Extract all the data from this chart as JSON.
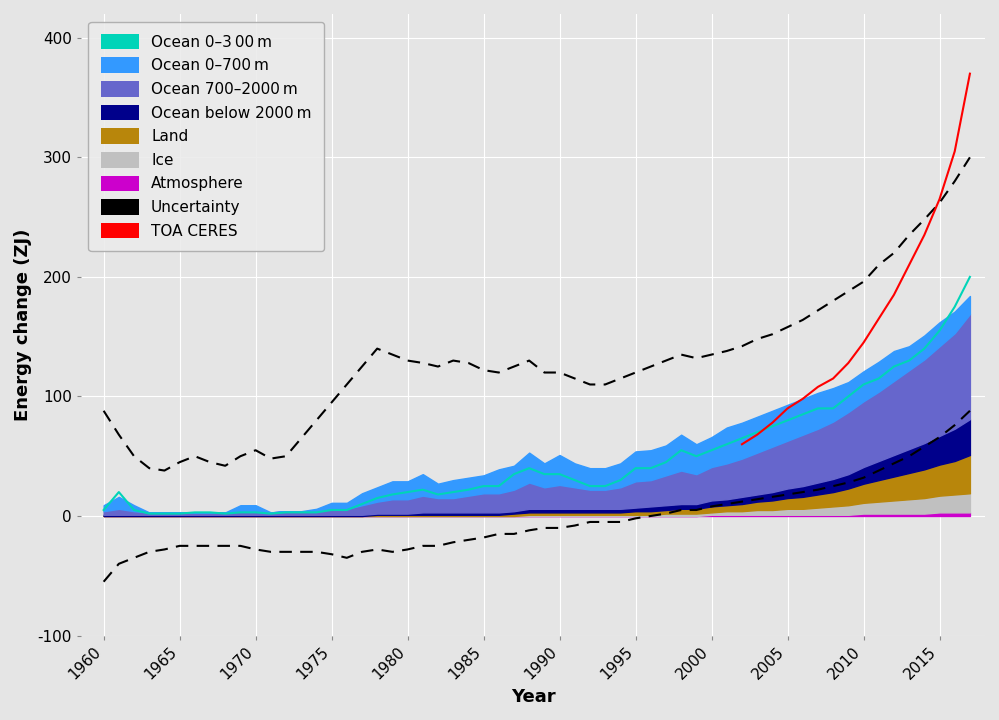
{
  "years": [
    1960,
    1961,
    1962,
    1963,
    1964,
    1965,
    1966,
    1967,
    1968,
    1969,
    1970,
    1971,
    1972,
    1973,
    1974,
    1975,
    1976,
    1977,
    1978,
    1979,
    1980,
    1981,
    1982,
    1983,
    1984,
    1985,
    1986,
    1987,
    1988,
    1989,
    1990,
    1991,
    1992,
    1993,
    1994,
    1995,
    1996,
    1997,
    1998,
    1999,
    2000,
    2001,
    2002,
    2003,
    2004,
    2005,
    2006,
    2007,
    2008,
    2009,
    2010,
    2011,
    2012,
    2013,
    2014,
    2015,
    2016,
    2017
  ],
  "ocean_0_300_line": [
    5,
    20,
    5,
    2,
    2,
    2,
    3,
    3,
    2,
    3,
    3,
    2,
    3,
    3,
    3,
    5,
    5,
    10,
    15,
    18,
    20,
    22,
    18,
    20,
    22,
    25,
    25,
    35,
    40,
    35,
    35,
    30,
    25,
    25,
    30,
    40,
    40,
    45,
    55,
    50,
    55,
    60,
    65,
    70,
    75,
    80,
    85,
    90,
    90,
    100,
    110,
    115,
    125,
    130,
    140,
    155,
    175,
    200
  ],
  "ocean_0_700_increment": [
    5,
    10,
    5,
    0,
    0,
    0,
    0,
    0,
    0,
    5,
    5,
    0,
    0,
    0,
    2,
    5,
    5,
    10,
    12,
    15,
    15,
    18,
    12,
    15,
    15,
    15,
    20,
    20,
    25,
    20,
    25,
    20,
    18,
    18,
    20,
    25,
    25,
    25,
    30,
    25,
    25,
    30,
    30,
    30,
    30,
    30,
    30,
    30,
    28,
    25,
    25,
    25,
    25,
    20,
    20,
    20,
    18,
    15
  ],
  "ocean_700_2000": [
    3,
    5,
    3,
    2,
    2,
    2,
    2,
    2,
    2,
    3,
    3,
    2,
    3,
    3,
    3,
    5,
    5,
    8,
    10,
    12,
    12,
    14,
    12,
    12,
    14,
    16,
    16,
    18,
    22,
    18,
    20,
    18,
    16,
    16,
    18,
    22,
    22,
    25,
    28,
    25,
    28,
    30,
    32,
    35,
    38,
    40,
    43,
    45,
    48,
    52,
    55,
    58,
    62,
    66,
    70,
    75,
    80,
    88
  ],
  "ocean_below_2000": [
    1,
    1,
    1,
    1,
    1,
    1,
    1,
    1,
    1,
    1,
    1,
    1,
    1,
    1,
    1,
    1,
    1,
    1,
    1,
    1,
    1,
    2,
    2,
    2,
    2,
    2,
    2,
    2,
    3,
    3,
    3,
    3,
    3,
    3,
    3,
    3,
    4,
    4,
    4,
    4,
    5,
    5,
    6,
    6,
    7,
    8,
    9,
    10,
    11,
    12,
    14,
    16,
    18,
    20,
    22,
    24,
    27,
    30
  ],
  "land": [
    0,
    0,
    0,
    0,
    0,
    0,
    0,
    0,
    0,
    0,
    0,
    0,
    0,
    0,
    0,
    0,
    0,
    0,
    1,
    1,
    1,
    1,
    1,
    1,
    1,
    1,
    1,
    2,
    2,
    2,
    2,
    2,
    2,
    2,
    2,
    3,
    3,
    3,
    4,
    4,
    5,
    5,
    6,
    7,
    8,
    9,
    10,
    11,
    12,
    14,
    16,
    18,
    20,
    22,
    24,
    26,
    28,
    32
  ],
  "ice": [
    0,
    0,
    0,
    0,
    0,
    0,
    0,
    0,
    0,
    0,
    0,
    0,
    0,
    0,
    0,
    0,
    0,
    0,
    0,
    0,
    0,
    0,
    0,
    0,
    0,
    0,
    0,
    0,
    1,
    1,
    1,
    1,
    1,
    1,
    1,
    1,
    1,
    2,
    2,
    2,
    2,
    3,
    3,
    4,
    4,
    5,
    5,
    6,
    7,
    8,
    9,
    10,
    11,
    12,
    13,
    14,
    15,
    16
  ],
  "atmosphere": [
    0,
    0,
    0,
    0,
    0,
    0,
    0,
    0,
    0,
    0,
    0,
    0,
    0,
    0,
    0,
    0,
    0,
    0,
    0,
    0,
    0,
    0,
    0,
    0,
    0,
    0,
    0,
    0,
    0,
    0,
    0,
    0,
    0,
    0,
    0,
    0,
    0,
    0,
    0,
    0,
    1,
    1,
    1,
    1,
    1,
    1,
    1,
    1,
    1,
    1,
    2,
    2,
    2,
    2,
    2,
    3,
    3,
    3
  ],
  "uncertainty_upper": [
    88,
    68,
    50,
    40,
    38,
    45,
    50,
    45,
    42,
    50,
    55,
    48,
    50,
    65,
    80,
    95,
    110,
    125,
    140,
    135,
    130,
    128,
    125,
    130,
    128,
    122,
    120,
    125,
    130,
    120,
    120,
    115,
    110,
    110,
    115,
    120,
    125,
    130,
    135,
    132,
    135,
    138,
    142,
    148,
    152,
    158,
    164,
    172,
    180,
    188,
    196,
    210,
    220,
    235,
    248,
    262,
    280,
    300
  ],
  "uncertainty_lower": [
    -55,
    -40,
    -35,
    -30,
    -28,
    -25,
    -25,
    -25,
    -25,
    -25,
    -28,
    -30,
    -30,
    -30,
    -30,
    -32,
    -35,
    -30,
    -28,
    -30,
    -28,
    -25,
    -25,
    -22,
    -20,
    -18,
    -15,
    -15,
    -12,
    -10,
    -10,
    -8,
    -5,
    -5,
    -5,
    -2,
    0,
    2,
    5,
    5,
    8,
    10,
    12,
    14,
    16,
    18,
    20,
    22,
    25,
    28,
    32,
    38,
    44,
    50,
    58,
    66,
    76,
    88
  ],
  "toa_ceres_years": [
    2002,
    2003,
    2004,
    2005,
    2006,
    2007,
    2008,
    2009,
    2010,
    2011,
    2012,
    2013,
    2014,
    2015,
    2016,
    2017
  ],
  "toa_ceres_values": [
    60,
    68,
    78,
    90,
    98,
    108,
    115,
    128,
    145,
    165,
    185,
    210,
    235,
    265,
    305,
    370
  ],
  "bg_color": "#e5e5e5",
  "colors": {
    "ocean_0_300_line": "#00d4b8",
    "ocean_0_700": "#3399ff",
    "ocean_700_2000": "#6666cc",
    "ocean_below_2000": "#00008b",
    "land": "#b8860b",
    "ice": "#c0c0c0",
    "atmosphere": "#cc00cc",
    "toa_ceres": "#ff0000"
  },
  "ylim": [
    -100,
    420
  ],
  "xlim": [
    1958.5,
    2018
  ],
  "xlabel": "Year",
  "ylabel": "Energy change (ZJ)",
  "legend_labels": [
    "Ocean 0–3 00 m",
    "Ocean 0–700 m",
    "Ocean 700–2000 m",
    "Ocean below 2000 m",
    "Land",
    "Ice",
    "Atmosphere",
    "Uncertainty",
    "TOA CERES"
  ],
  "yticks": [
    0,
    100,
    200,
    300,
    400
  ],
  "ytick_labels": [
    "0",
    "100",
    "200",
    "300",
    "400"
  ],
  "xticks": [
    1960,
    1965,
    1970,
    1975,
    1980,
    1985,
    1990,
    1995,
    2000,
    2005,
    2010,
    2015
  ]
}
